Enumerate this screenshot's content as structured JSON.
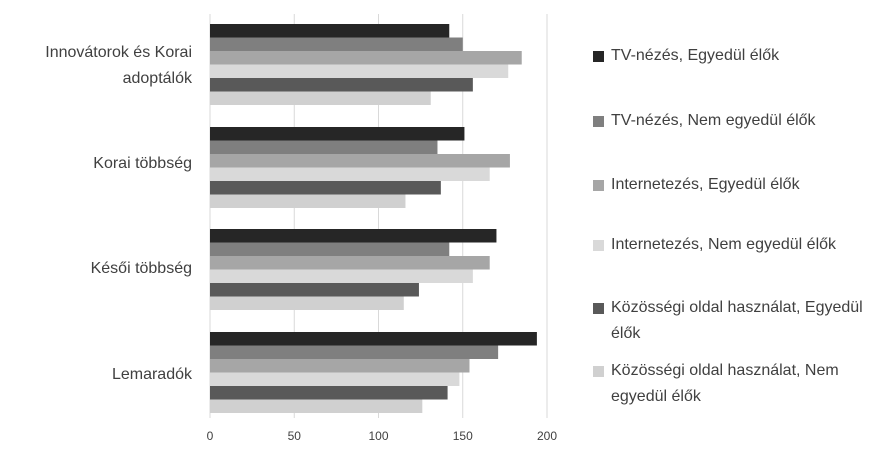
{
  "chart_data": {
    "type": "bar",
    "orientation": "horizontal",
    "categories": [
      "Innovátorok és Korai adoptálók",
      "Korai többség",
      "Késői többség",
      "Lemaradók"
    ],
    "series": [
      {
        "name": "TV-nézés, Egyedül élők",
        "color": "#262626",
        "values": [
          142,
          151,
          170,
          194
        ]
      },
      {
        "name": "TV-nézés, Nem egyedül élők",
        "color": "#7f7f7f",
        "values": [
          150,
          135,
          142,
          171
        ]
      },
      {
        "name": "Internetezés, Egyedül élők",
        "color": "#a6a6a6",
        "values": [
          185,
          178,
          166,
          154
        ]
      },
      {
        "name": "Internetezés, Nem egyedül élők",
        "color": "#d9d9d9",
        "values": [
          177,
          166,
          156,
          148
        ]
      },
      {
        "name": "Közösségi oldal használat, Egyedül élők",
        "color": "#595959",
        "values": [
          156,
          137,
          124,
          141
        ]
      },
      {
        "name": "Közösségi oldal használat, Nem egyedül élők",
        "color": "#d0d0d0",
        "values": [
          131,
          116,
          115,
          126
        ]
      }
    ],
    "xlim": [
      0,
      200
    ],
    "xticks": [
      0,
      50,
      100,
      150,
      200
    ],
    "grid": "vertical",
    "legend_position": "right"
  }
}
